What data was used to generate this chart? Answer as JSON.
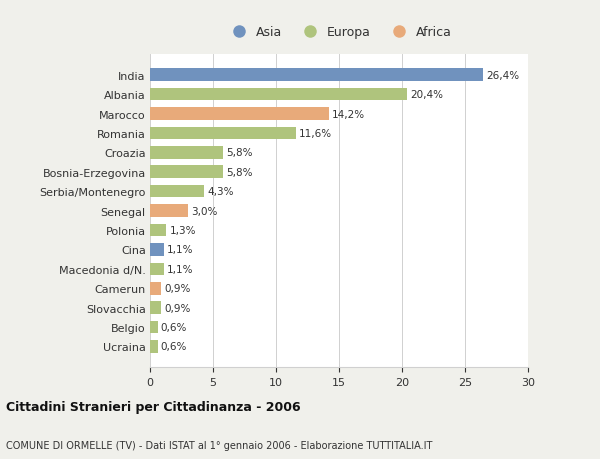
{
  "categories": [
    "Ucraina",
    "Belgio",
    "Slovacchia",
    "Camerun",
    "Macedonia d/N.",
    "Cina",
    "Polonia",
    "Senegal",
    "Serbia/Montenegro",
    "Bosnia-Erzegovina",
    "Croazia",
    "Romania",
    "Marocco",
    "Albania",
    "India"
  ],
  "values": [
    0.6,
    0.6,
    0.9,
    0.9,
    1.1,
    1.1,
    1.3,
    3.0,
    4.3,
    5.8,
    5.8,
    11.6,
    14.2,
    20.4,
    26.4
  ],
  "labels": [
    "0,6%",
    "0,6%",
    "0,9%",
    "0,9%",
    "1,1%",
    "1,1%",
    "1,3%",
    "3,0%",
    "4,3%",
    "5,8%",
    "5,8%",
    "11,6%",
    "14,2%",
    "20,4%",
    "26,4%"
  ],
  "colors": [
    "#afc47d",
    "#afc47d",
    "#afc47d",
    "#e8aa7a",
    "#afc47d",
    "#7092be",
    "#afc47d",
    "#e8aa7a",
    "#afc47d",
    "#afc47d",
    "#afc47d",
    "#afc47d",
    "#e8aa7a",
    "#afc47d",
    "#7092be"
  ],
  "legend_labels": [
    "Asia",
    "Europa",
    "Africa"
  ],
  "legend_colors": [
    "#7092be",
    "#afc47d",
    "#e8aa7a"
  ],
  "title_main": "Cittadini Stranieri per Cittadinanza - 2006",
  "title_sub": "COMUNE DI ORMELLE (TV) - Dati ISTAT al 1° gennaio 2006 - Elaborazione TUTTITALIA.IT",
  "xlim": [
    0,
    30
  ],
  "xticks": [
    0,
    5,
    10,
    15,
    20,
    25,
    30
  ],
  "bar_height": 0.65,
  "background_color": "#f0f0eb",
  "plot_bg_color": "#ffffff",
  "grid_color": "#d0d0d0",
  "text_color": "#333333"
}
